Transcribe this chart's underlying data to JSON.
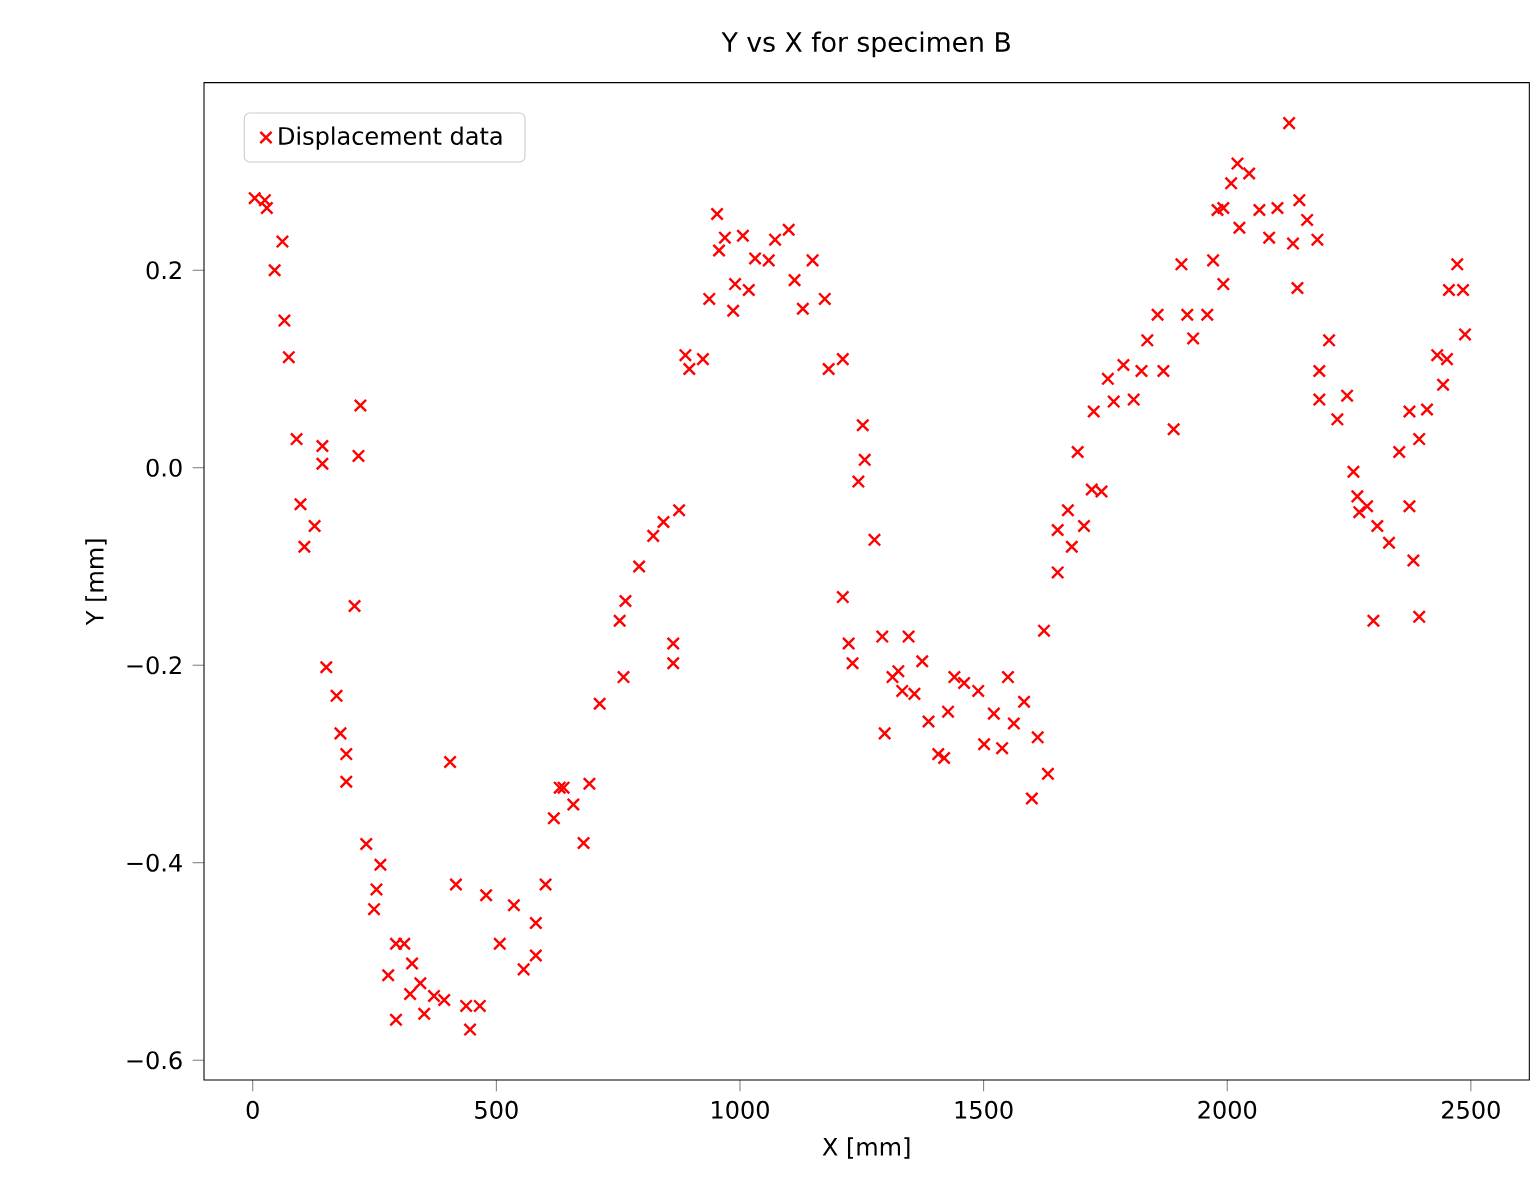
{
  "chart_data": {
    "type": "scatter",
    "title": "Y vs X for specimen B",
    "xlabel": "X [mm]",
    "ylabel": "Y [mm]",
    "xlim": [
      -100,
      2620
    ],
    "ylim": [
      -0.62,
      0.39
    ],
    "xticks": [
      0,
      500,
      1000,
      1500,
      2000,
      2500
    ],
    "yticks": [
      {
        "value": -0.6,
        "label": "−0.6"
      },
      {
        "value": -0.4,
        "label": "−0.4"
      },
      {
        "value": -0.2,
        "label": "−0.2"
      },
      {
        "value": 0,
        "label": "0.0"
      },
      0.2
    ],
    "grid": false,
    "legend": "top left",
    "marker": "cross",
    "series": [
      {
        "name": "Displacement data",
        "color": "#ff0000",
        "x": [
          4,
          25,
          29,
          61,
          45,
          65,
          74,
          90,
          143,
          143,
          98,
          127,
          106,
          221,
          217,
          209,
          151,
          172,
          180,
          192,
          192,
          233,
          262,
          254,
          249,
          294,
          311,
          278,
          327,
          344,
          323,
          294,
          352,
          372,
          393,
          438,
          466,
          446,
          405,
          417,
          479,
          536,
          507,
          581,
          556,
          581,
          601,
          618,
          630,
          638,
          691,
          658,
          679,
          712,
          753,
          761,
          765,
          793,
          822,
          843,
          875,
          863,
          863,
          888,
          924,
          896,
          937,
          953,
          957,
          969,
          986,
          990,
          1006,
          1018,
          1031,
          1059,
          1072,
          1100,
          1112,
          1129,
          1149,
          1174,
          1182,
          1211,
          1252,
          1256,
          1243,
          1276,
          1211,
          1223,
          1231,
          1292,
          1313,
          1297,
          1346,
          1325,
          1374,
          1333,
          1358,
          1387,
          1407,
          1419,
          1440,
          1427,
          1460,
          1489,
          1501,
          1521,
          1538,
          1550,
          1562,
          1583,
          1611,
          1599,
          1632,
          1624,
          1652,
          1652,
          1681,
          1673,
          1706,
          1693,
          1722,
          1742,
          1726,
          1755,
          1767,
          1787,
          1808,
          1824,
          1857,
          1836,
          1869,
          1890,
          1906,
          1918,
          1930,
          1959,
          1971,
          1992,
          1992,
          2008,
          2127,
          2021,
          2045,
          1980,
          2025,
          2066,
          2103,
          2086,
          2148,
          2164,
          2135,
          2185,
          2144,
          2209,
          2189,
          2189,
          2226,
          2246,
          2259,
          2267,
          2287,
          2308,
          2332,
          2271,
          2300,
          2394,
          2382,
          2374,
          2353,
          2394,
          2374,
          2410,
          2443,
          2431,
          2451,
          2455,
          2484,
          2472,
          2488
        ],
        "values": [
          0.273,
          0.271,
          0.263,
          0.229,
          0.2,
          0.149,
          0.112,
          0.029,
          0.022,
          0.004,
          -0.037,
          -0.059,
          -0.08,
          0.063,
          0.012,
          -0.14,
          -0.202,
          -0.231,
          -0.269,
          -0.29,
          -0.318,
          -0.381,
          -0.402,
          -0.427,
          -0.447,
          -0.482,
          -0.482,
          -0.514,
          -0.502,
          -0.522,
          -0.533,
          -0.559,
          -0.553,
          -0.535,
          -0.539,
          -0.545,
          -0.545,
          -0.569,
          -0.298,
          -0.422,
          -0.433,
          -0.443,
          -0.482,
          -0.461,
          -0.508,
          -0.494,
          -0.422,
          -0.355,
          -0.324,
          -0.324,
          -0.32,
          -0.341,
          -0.38,
          -0.239,
          -0.155,
          -0.212,
          -0.135,
          -0.1,
          -0.069,
          -0.055,
          -0.043,
          -0.178,
          -0.198,
          0.114,
          0.11,
          0.1,
          0.171,
          0.257,
          0.22,
          0.233,
          0.159,
          0.186,
          0.235,
          0.18,
          0.212,
          0.21,
          0.231,
          0.241,
          0.19,
          0.161,
          0.21,
          0.171,
          0.1,
          0.11,
          0.043,
          0.008,
          -0.014,
          -0.073,
          -0.131,
          -0.178,
          -0.198,
          -0.171,
          -0.212,
          -0.269,
          -0.171,
          -0.206,
          -0.196,
          -0.226,
          -0.229,
          -0.257,
          -0.29,
          -0.294,
          -0.212,
          -0.247,
          -0.218,
          -0.226,
          -0.28,
          -0.249,
          -0.284,
          -0.212,
          -0.259,
          -0.237,
          -0.273,
          -0.335,
          -0.31,
          -0.165,
          -0.106,
          -0.063,
          -0.08,
          -0.043,
          -0.059,
          0.016,
          -0.022,
          -0.024,
          0.057,
          0.09,
          0.067,
          0.104,
          0.069,
          0.098,
          0.155,
          0.129,
          0.098,
          0.039,
          0.206,
          0.155,
          0.131,
          0.155,
          0.21,
          0.186,
          0.263,
          0.288,
          0.349,
          0.308,
          0.298,
          0.261,
          0.243,
          0.261,
          0.263,
          0.233,
          0.271,
          0.251,
          0.227,
          0.231,
          0.182,
          0.129,
          0.098,
          0.069,
          0.049,
          0.073,
          -0.004,
          -0.029,
          -0.039,
          -0.059,
          -0.076,
          -0.045,
          -0.155,
          -0.151,
          -0.094,
          -0.039,
          0.016,
          0.029,
          0.057,
          0.059,
          0.084,
          0.114,
          0.11,
          0.18,
          0.18,
          0.206,
          0.135
        ]
      }
    ]
  }
}
